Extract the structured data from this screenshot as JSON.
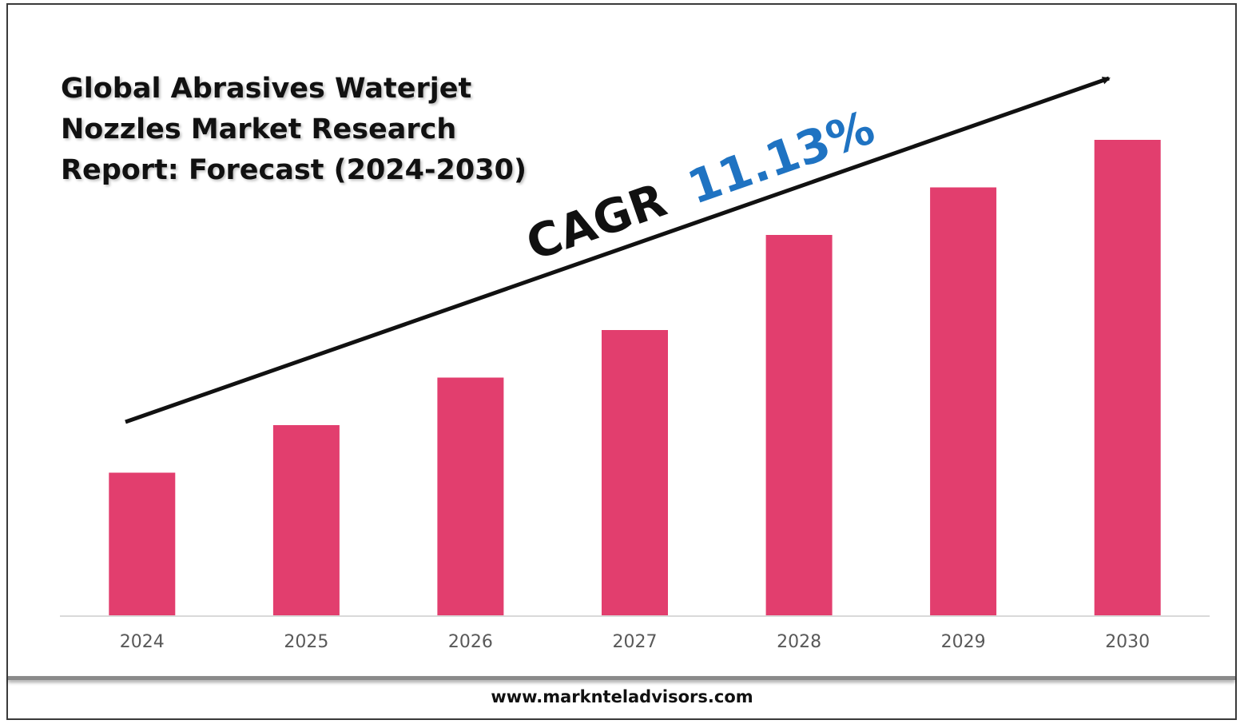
{
  "title_lines": [
    "Global Abrasives Waterjet",
    "Nozzles Market Research",
    "Report: Forecast (2024-2030)"
  ],
  "cagr": {
    "label": "CAGR",
    "value": "11.13%"
  },
  "footer": {
    "website": "www.marknteladvisors.com"
  },
  "colors": {
    "bar": "#e23e6e",
    "cagr_value": "#1f73c2",
    "text": "#111111",
    "axis_label": "#595959",
    "baseline": "#d9d9d9"
  },
  "chart_data": {
    "type": "bar",
    "title": "Global Abrasives Waterjet Nozzles Market Research Report: Forecast (2024-2030)",
    "categories": [
      "2024",
      "2025",
      "2026",
      "2027",
      "2028",
      "2029",
      "2030"
    ],
    "values": [
      30,
      40,
      50,
      60,
      80,
      90,
      100
    ],
    "xlabel": "",
    "ylabel": "",
    "ylim": [
      0,
      100
    ],
    "grid": false,
    "legend": "none",
    "annotations": [
      "CAGR 11.13%"
    ],
    "trend_arrow": true
  }
}
